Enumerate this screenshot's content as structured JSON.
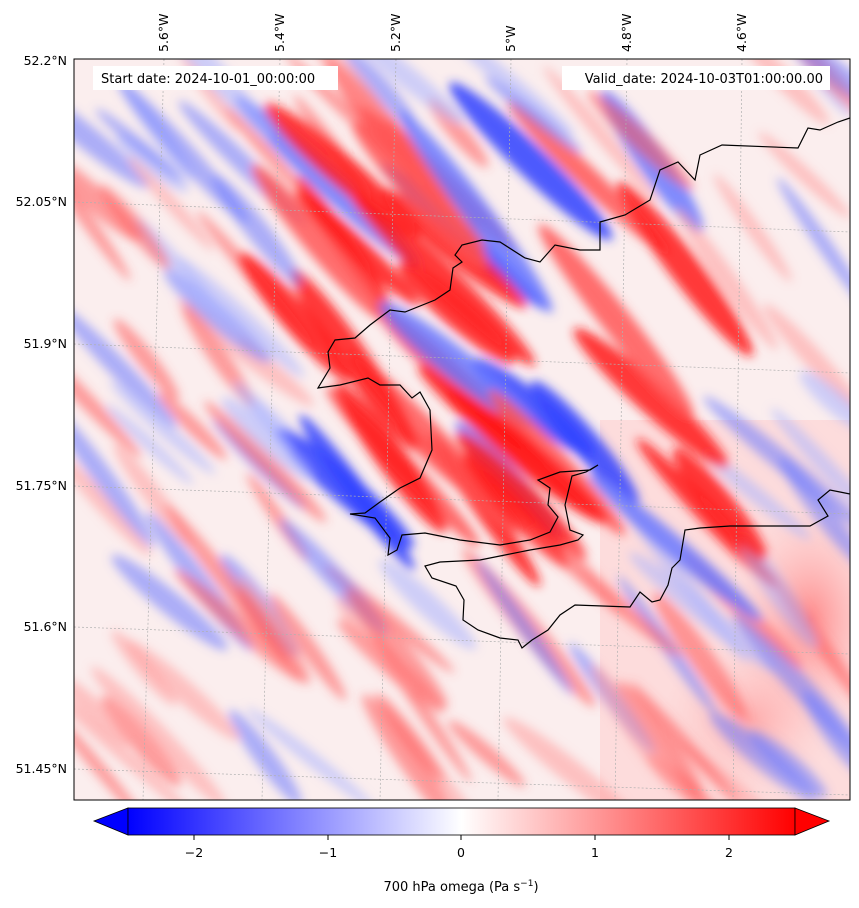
{
  "header": {
    "start_date": "Start date: 2024-10-01_00:00:00",
    "valid_date": "Valid_date: 2024-10-03T01:00:00.00"
  },
  "map": {
    "lon_ticks": [
      "5.6°W",
      "5.4°W",
      "5.2°W",
      "5°W",
      "4.8°W",
      "4.6°W"
    ],
    "lat_ticks": [
      "52.2°N",
      "52.05°N",
      "51.9°N",
      "51.75°N",
      "51.6°N",
      "51.45°N"
    ],
    "field": "700 hPa omega",
    "colormap": "bwr",
    "coastline_color": "#000000",
    "gridline_color": "#b0b0b0"
  },
  "colorbar": {
    "ticks": [
      "−2",
      "−1",
      "0",
      "1",
      "2"
    ],
    "tick_values": [
      -2,
      -1,
      0,
      1,
      2
    ],
    "range": [
      -2.75,
      2.75
    ],
    "extend": "both",
    "label_prefix": "700 hPa omega (Pa s",
    "label_exp": "−1",
    "label_suffix": ")",
    "color_low": "#0000ff",
    "color_mid": "#ffffff",
    "color_high": "#ff0000"
  }
}
